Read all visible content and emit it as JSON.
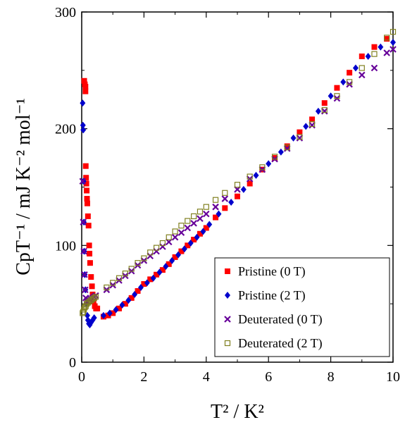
{
  "chart_data": {
    "type": "scatter",
    "xlabel": "T² / K²",
    "ylabel": "CpT⁻¹ / mJ K⁻² mol⁻¹",
    "xlim": [
      0,
      10
    ],
    "ylim": [
      0,
      300
    ],
    "xticks": [
      0,
      2,
      4,
      6,
      8,
      10
    ],
    "yticks": [
      0,
      100,
      200,
      300
    ],
    "grid": false,
    "legend_position": "bottom-right",
    "series": [
      {
        "name": "Pristine (0 T)",
        "marker": "square-filled",
        "color": "#ff0000",
        "points": [
          [
            0.08,
            241
          ],
          [
            0.1,
            238
          ],
          [
            0.12,
            236
          ],
          [
            0.12,
            232
          ],
          [
            0.13,
            168
          ],
          [
            0.14,
            158
          ],
          [
            0.15,
            153
          ],
          [
            0.16,
            147
          ],
          [
            0.17,
            140
          ],
          [
            0.18,
            136
          ],
          [
            0.2,
            125
          ],
          [
            0.22,
            117
          ],
          [
            0.24,
            100
          ],
          [
            0.25,
            93
          ],
          [
            0.27,
            85
          ],
          [
            0.3,
            73
          ],
          [
            0.33,
            65
          ],
          [
            0.35,
            58
          ],
          [
            0.38,
            52
          ],
          [
            0.42,
            48
          ],
          [
            0.46,
            46
          ],
          [
            0.5,
            46
          ],
          [
            0.7,
            39
          ],
          [
            0.85,
            40
          ],
          [
            1.0,
            42
          ],
          [
            1.2,
            46
          ],
          [
            1.4,
            50
          ],
          [
            1.6,
            55
          ],
          [
            1.8,
            61
          ],
          [
            2.0,
            67
          ],
          [
            2.2,
            71
          ],
          [
            2.4,
            75
          ],
          [
            2.6,
            79
          ],
          [
            2.8,
            84
          ],
          [
            3.0,
            90
          ],
          [
            3.2,
            95
          ],
          [
            3.4,
            100
          ],
          [
            3.6,
            105
          ],
          [
            3.8,
            110
          ],
          [
            4.0,
            115
          ],
          [
            4.3,
            124
          ],
          [
            4.6,
            132
          ],
          [
            5.0,
            142
          ],
          [
            5.4,
            153
          ],
          [
            5.8,
            165
          ],
          [
            6.2,
            175
          ],
          [
            6.6,
            185
          ],
          [
            7.0,
            197
          ],
          [
            7.4,
            208
          ],
          [
            7.8,
            222
          ],
          [
            8.2,
            235
          ],
          [
            8.6,
            248
          ],
          [
            9.0,
            262
          ],
          [
            9.4,
            270
          ],
          [
            9.8,
            277
          ]
        ]
      },
      {
        "name": "Pristine (2 T)",
        "marker": "diamond-filled",
        "color": "#0000cc",
        "points": [
          [
            0.03,
            222
          ],
          [
            0.04,
            203
          ],
          [
            0.05,
            199
          ],
          [
            0.06,
            155
          ],
          [
            0.07,
            120
          ],
          [
            0.08,
            95
          ],
          [
            0.1,
            75
          ],
          [
            0.12,
            62
          ],
          [
            0.15,
            50
          ],
          [
            0.18,
            40
          ],
          [
            0.2,
            36
          ],
          [
            0.23,
            33
          ],
          [
            0.26,
            32
          ],
          [
            0.3,
            34
          ],
          [
            0.35,
            36
          ],
          [
            0.4,
            38
          ],
          [
            0.7,
            40
          ],
          [
            0.9,
            42
          ],
          [
            1.1,
            45
          ],
          [
            1.3,
            49
          ],
          [
            1.5,
            53
          ],
          [
            1.7,
            58
          ],
          [
            1.9,
            64
          ],
          [
            2.1,
            68
          ],
          [
            2.3,
            72
          ],
          [
            2.5,
            77
          ],
          [
            2.7,
            82
          ],
          [
            2.9,
            87
          ],
          [
            3.1,
            92
          ],
          [
            3.3,
            97
          ],
          [
            3.5,
            102
          ],
          [
            3.7,
            107
          ],
          [
            3.9,
            112
          ],
          [
            4.1,
            118
          ],
          [
            4.4,
            127
          ],
          [
            4.8,
            137
          ],
          [
            5.2,
            148
          ],
          [
            5.6,
            160
          ],
          [
            6.0,
            170
          ],
          [
            6.4,
            180
          ],
          [
            6.8,
            192
          ],
          [
            7.2,
            202
          ],
          [
            7.6,
            215
          ],
          [
            8.0,
            228
          ],
          [
            8.4,
            240
          ],
          [
            8.8,
            252
          ],
          [
            9.2,
            262
          ],
          [
            9.6,
            270
          ],
          [
            10.0,
            274
          ]
        ]
      },
      {
        "name": "Deuterated (0 T)",
        "marker": "x",
        "color": "#660099",
        "points": [
          [
            0.03,
            155
          ],
          [
            0.05,
            120
          ],
          [
            0.07,
            95
          ],
          [
            0.09,
            75
          ],
          [
            0.11,
            62
          ],
          [
            0.13,
            55
          ],
          [
            0.16,
            52
          ],
          [
            0.2,
            52
          ],
          [
            0.25,
            53
          ],
          [
            0.3,
            54
          ],
          [
            0.35,
            55
          ],
          [
            0.4,
            56
          ],
          [
            0.45,
            57
          ],
          [
            0.8,
            62
          ],
          [
            1.0,
            66
          ],
          [
            1.2,
            70
          ],
          [
            1.4,
            74
          ],
          [
            1.6,
            78
          ],
          [
            1.8,
            83
          ],
          [
            2.0,
            87
          ],
          [
            2.2,
            91
          ],
          [
            2.4,
            95
          ],
          [
            2.6,
            99
          ],
          [
            2.8,
            103
          ],
          [
            3.0,
            107
          ],
          [
            3.2,
            111
          ],
          [
            3.4,
            115
          ],
          [
            3.6,
            119
          ],
          [
            3.8,
            123
          ],
          [
            4.0,
            127
          ],
          [
            4.3,
            133
          ],
          [
            4.6,
            140
          ],
          [
            5.0,
            148
          ],
          [
            5.4,
            157
          ],
          [
            5.8,
            165
          ],
          [
            6.2,
            174
          ],
          [
            6.6,
            183
          ],
          [
            7.0,
            192
          ],
          [
            7.4,
            203
          ],
          [
            7.8,
            215
          ],
          [
            8.2,
            226
          ],
          [
            8.6,
            238
          ],
          [
            9.0,
            246
          ],
          [
            9.4,
            252
          ],
          [
            9.8,
            265
          ],
          [
            10.0,
            268
          ]
        ]
      },
      {
        "name": "Deuterated (2 T)",
        "marker": "square-open",
        "color": "#808020",
        "points": [
          [
            0.03,
            42
          ],
          [
            0.05,
            43
          ],
          [
            0.07,
            45
          ],
          [
            0.1,
            47
          ],
          [
            0.13,
            48
          ],
          [
            0.16,
            50
          ],
          [
            0.2,
            51
          ],
          [
            0.25,
            52
          ],
          [
            0.3,
            53
          ],
          [
            0.35,
            54
          ],
          [
            0.4,
            55
          ],
          [
            0.45,
            56
          ],
          [
            0.8,
            64
          ],
          [
            1.0,
            68
          ],
          [
            1.2,
            72
          ],
          [
            1.4,
            76
          ],
          [
            1.6,
            80
          ],
          [
            1.8,
            85
          ],
          [
            2.0,
            89
          ],
          [
            2.2,
            94
          ],
          [
            2.4,
            98
          ],
          [
            2.6,
            102
          ],
          [
            2.8,
            107
          ],
          [
            3.0,
            112
          ],
          [
            3.2,
            117
          ],
          [
            3.4,
            121
          ],
          [
            3.6,
            125
          ],
          [
            3.8,
            129
          ],
          [
            4.0,
            133
          ],
          [
            4.3,
            139
          ],
          [
            4.6,
            145
          ],
          [
            5.0,
            152
          ],
          [
            5.4,
            159
          ],
          [
            5.8,
            167
          ],
          [
            6.2,
            176
          ],
          [
            6.6,
            184
          ],
          [
            7.0,
            193
          ],
          [
            7.4,
            204
          ],
          [
            7.8,
            216
          ],
          [
            8.2,
            228
          ],
          [
            8.6,
            240
          ],
          [
            9.0,
            252
          ],
          [
            9.4,
            264
          ],
          [
            9.8,
            278
          ],
          [
            10.0,
            283
          ]
        ]
      }
    ]
  }
}
